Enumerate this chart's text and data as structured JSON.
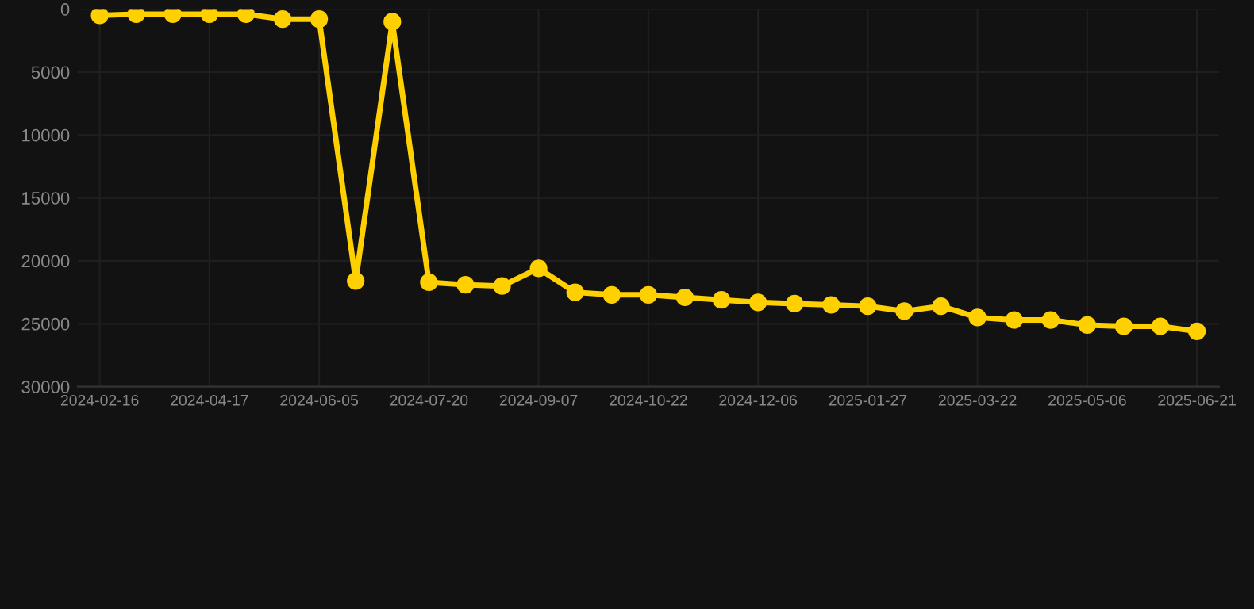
{
  "chart_data": {
    "type": "line",
    "categories": [
      "2024-02-16",
      null,
      null,
      "2024-04-17",
      null,
      null,
      "2024-06-05",
      null,
      null,
      "2024-07-20",
      null,
      null,
      "2024-09-07",
      null,
      null,
      "2024-10-22",
      null,
      null,
      "2024-12-06",
      null,
      null,
      "2025-01-27",
      null,
      null,
      "2025-03-22",
      null,
      null,
      "2025-05-06",
      null,
      null,
      "2025-06-21"
    ],
    "series": [
      {
        "color": "#ffd000",
        "values": [
          500,
          400,
          400,
          400,
          400,
          800,
          800,
          21600,
          1000,
          21700,
          21900,
          22000,
          20600,
          22500,
          22700,
          22700,
          22900,
          23100,
          23300,
          23400,
          23500,
          23600,
          24000,
          23600,
          24500,
          24700,
          24700,
          25100,
          25200,
          25200,
          25600
        ]
      }
    ],
    "ylim": [
      30000,
      0
    ],
    "yticks": [
      0,
      5000,
      10000,
      15000,
      20000,
      25000,
      30000
    ],
    "grid": true,
    "marker": "circle",
    "line_style": "solid"
  }
}
